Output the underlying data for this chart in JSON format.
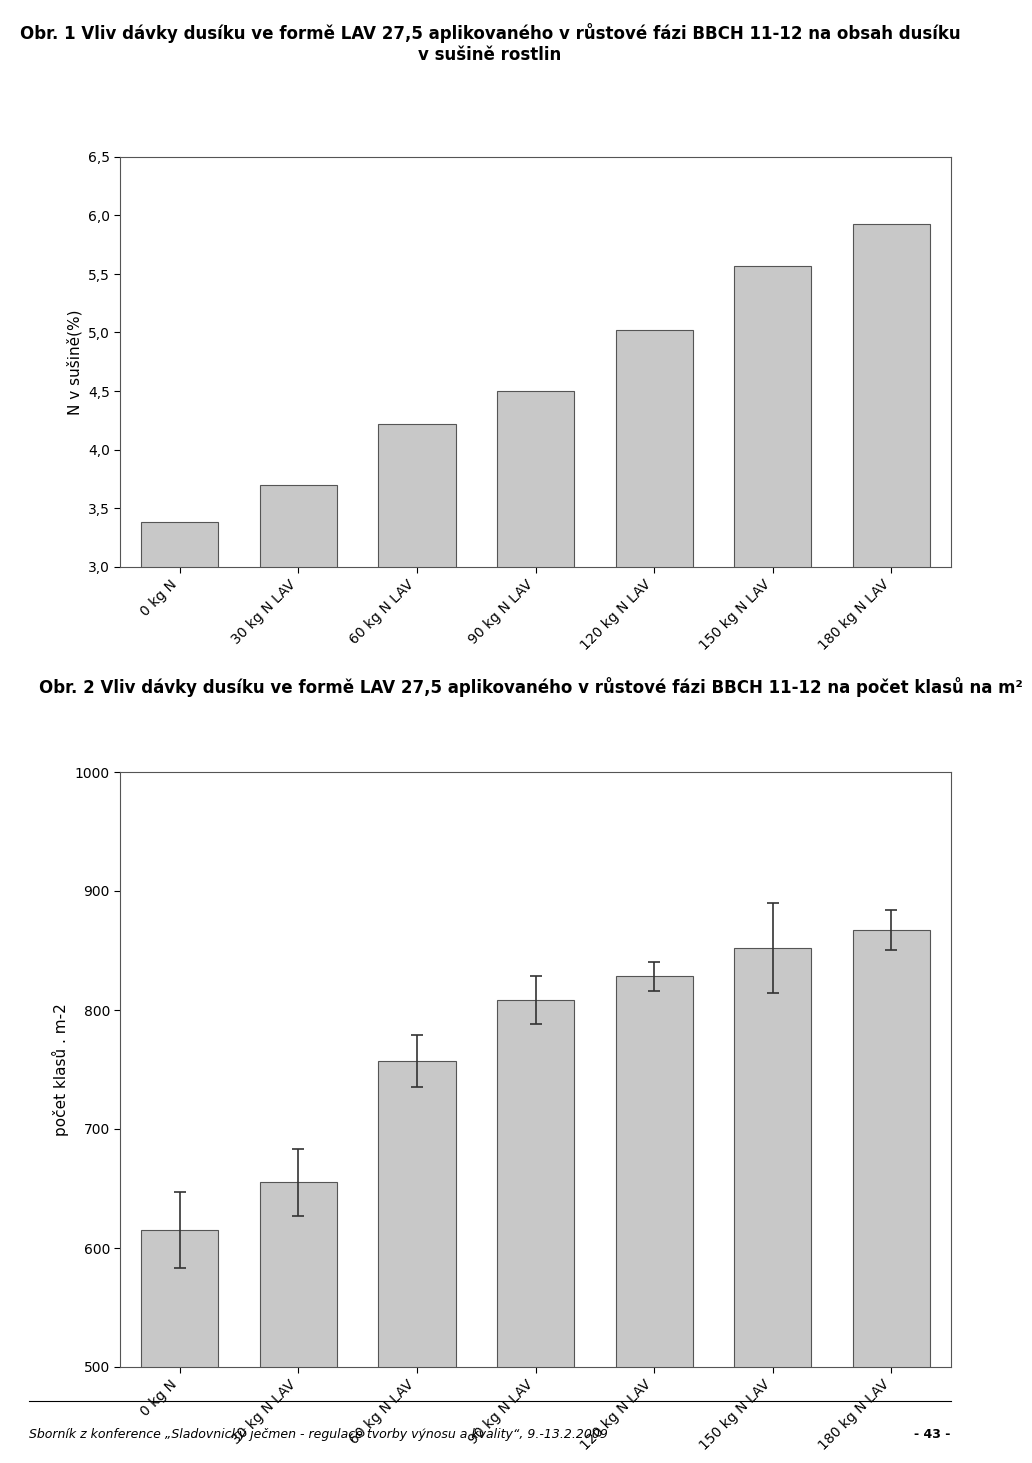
{
  "chart1": {
    "title": "Obr. 1 Vliv dávky dusíku ve formě LAV 27,5 aplikovaného v růstové fázi BBCH 11-12 na obsah dusíku\nv sušině rostlin",
    "ylabel": "N v sušině(%)",
    "categories": [
      "0 kg N",
      "30 kg N LAV",
      "60 kg N LAV",
      "90 kg N LAV",
      "120 kg N LAV",
      "150 kg N LAV",
      "180 kg N LAV"
    ],
    "values": [
      3.38,
      3.7,
      4.22,
      4.5,
      5.02,
      5.57,
      5.93
    ],
    "ylim": [
      3.0,
      6.5
    ],
    "yticks": [
      3.0,
      3.5,
      4.0,
      4.5,
      5.0,
      5.5,
      6.0,
      6.5
    ],
    "bar_color": "#c8c8c8",
    "bar_edge_color": "#555555"
  },
  "chart2": {
    "title": "Obr. 2 Vliv dávky dusíku ve formě LAV 27,5 aplikovaného v růstové fázi BBCH 11-12 na počet klasů na m²",
    "ylabel": "počet klasů . m-2",
    "categories": [
      "0 kg N",
      "30 kg N LAV",
      "60 kg N LAV",
      "90 kg N LAV",
      "120 kg N LAV",
      "150 kg N LAV",
      "180 kg N LAV"
    ],
    "values": [
      615,
      655,
      757,
      808,
      828,
      852,
      867
    ],
    "errors": [
      32,
      28,
      22,
      20,
      12,
      38,
      17
    ],
    "ylim": [
      500,
      1000
    ],
    "yticks": [
      500,
      600,
      700,
      800,
      900,
      1000
    ],
    "bar_color": "#c8c8c8",
    "bar_edge_color": "#555555"
  },
  "footer_text": "Sborník z konference „Sladovnický ječmen - regulace tvorby výnosu a kvality“, 9.-13.2.2009",
  "footer_right": "- 43 -",
  "bg_color": "#ffffff",
  "text_color": "#000000",
  "title_fontsize": 12,
  "label_fontsize": 11,
  "tick_fontsize": 10,
  "footer_fontsize": 9
}
